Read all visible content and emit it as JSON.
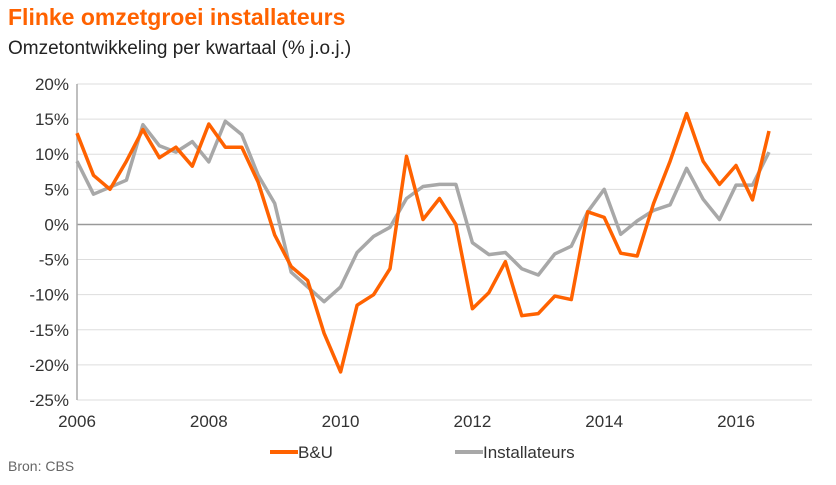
{
  "chart_data": {
    "type": "line",
    "title": "Flinke omzetgroei installateurs",
    "subtitle": "Omzetontwikkeling  per kwartaal (% j.o.j.)",
    "source": "Bron: CBS",
    "xlabel": "",
    "ylabel": "",
    "x_start": 2006,
    "x_step": 0.25,
    "xticks": [
      2006,
      2008,
      2010,
      2012,
      2014,
      2016
    ],
    "xtick_labels": [
      "2006",
      "2008",
      "2010",
      "2012",
      "2014",
      "2016"
    ],
    "ylim": [
      -25,
      20
    ],
    "yticks": [
      20,
      15,
      10,
      5,
      0,
      -5,
      -10,
      -15,
      -20,
      -25
    ],
    "ytick_labels": [
      "20%",
      "15%",
      "10%",
      "5%",
      "0%",
      "-5%",
      "-10%",
      "-15%",
      "-20%",
      "-25%"
    ],
    "grid": true,
    "legend_position": "bottom",
    "series": [
      {
        "name": "B&U",
        "color": "#ff6200",
        "values": [
          13,
          7,
          5,
          9,
          13.5,
          9.5,
          11,
          8.3,
          14.3,
          11,
          11,
          6,
          -1.5,
          -6,
          -8,
          -15.5,
          -21,
          -11.5,
          -10,
          -6.3,
          9.7,
          0.7,
          3.7,
          0,
          -12,
          -9.7,
          -5.3,
          -13,
          -12.7,
          -10.2,
          -10.7,
          1.8,
          1,
          -4.1,
          -4.5,
          3,
          9,
          15.8,
          9,
          5.7,
          8.4,
          3.5,
          13.3
        ]
      },
      {
        "name": "Installateurs",
        "color": "#a8a8a8",
        "values": [
          9,
          4.3,
          5.3,
          6.3,
          14.2,
          11.2,
          10.3,
          11.8,
          8.9,
          14.7,
          12.8,
          7,
          3,
          -6.8,
          -8.9,
          -11,
          -8.9,
          -4,
          -1.7,
          -0.4,
          3.7,
          5.4,
          5.7,
          5.7,
          -2.6,
          -4.3,
          -4,
          -6.3,
          -7.2,
          -4.2,
          -3.1,
          1.8,
          5,
          -1.4,
          0.5,
          2,
          2.8,
          8,
          3.6,
          0.7,
          5.6,
          5.6,
          10.3
        ]
      }
    ]
  }
}
